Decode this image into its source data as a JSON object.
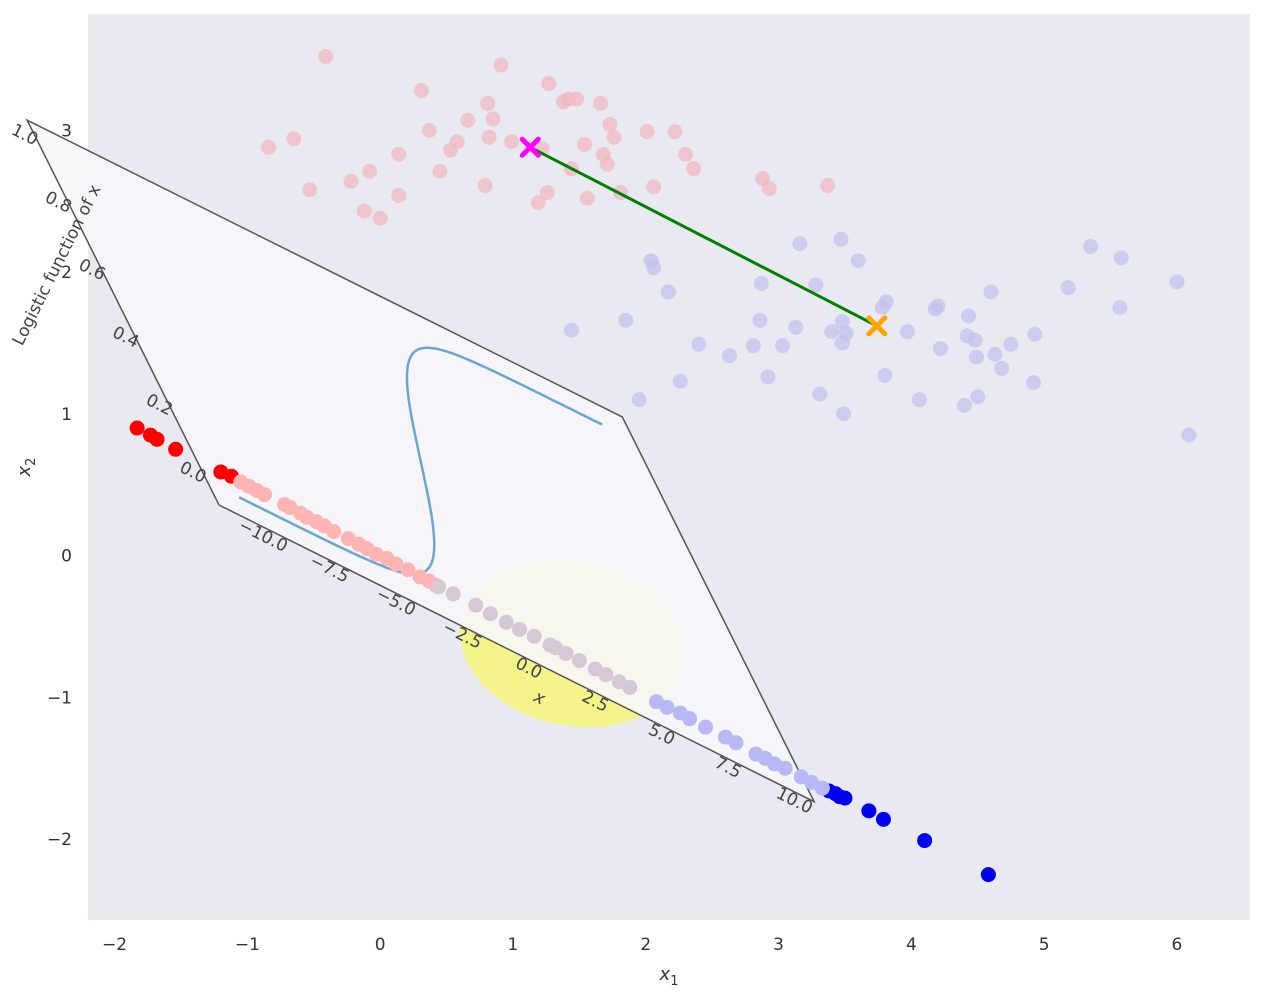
{
  "chart_data": [
    {
      "type": "scatter",
      "title": "",
      "xlabel": "x",
      "xlabel_sub": "1",
      "ylabel": "x",
      "ylabel_sub": "2",
      "xlim": [
        -2.2,
        6.55
      ],
      "ylim": [
        -2.57,
        3.82
      ],
      "xticks": [
        -2,
        -1,
        0,
        1,
        2,
        3,
        4,
        5,
        6
      ],
      "xtick_labels": [
        "−2",
        "−1",
        "0",
        "1",
        "2",
        "3",
        "4",
        "5",
        "6"
      ],
      "yticks": [
        -2,
        -1,
        0,
        1,
        2,
        3
      ],
      "ytick_labels": [
        "−2",
        "−1",
        "0",
        "1",
        "2",
        "3"
      ],
      "grid": false,
      "background": "#e9e9f1",
      "colors": {
        "class_a": "#ff0000",
        "class_b": "#0000ee",
        "class_a_faded": "#f0b8c0",
        "class_b_faded": "#c2c2ee",
        "line": "#008000",
        "start_marker": "#ff00ff",
        "end_marker": "#ffa500",
        "highlight": "#f5f580"
      },
      "series": [
        {
          "role": "class_a_cloud",
          "points": [
            [
              -0.41,
              3.52
            ],
            [
              0.31,
              3.28
            ],
            [
              0.91,
              3.46
            ],
            [
              1.27,
              3.33
            ],
            [
              0.66,
              3.07
            ],
            [
              0.81,
              3.19
            ],
            [
              0.85,
              3.08
            ],
            [
              1.38,
              3.2
            ],
            [
              1.42,
              3.22
            ],
            [
              1.48,
              3.22
            ],
            [
              1.66,
              3.19
            ],
            [
              1.73,
              3.04
            ],
            [
              1.76,
              2.95
            ],
            [
              1.54,
              2.9
            ],
            [
              1.68,
              2.83
            ],
            [
              2.01,
              2.99
            ],
            [
              2.22,
              2.99
            ],
            [
              2.3,
              2.83
            ],
            [
              2.36,
              2.73
            ],
            [
              1.71,
              2.76
            ],
            [
              1.22,
              2.87
            ],
            [
              0.99,
              2.92
            ],
            [
              0.82,
              2.95
            ],
            [
              0.58,
              2.92
            ],
            [
              0.53,
              2.86
            ],
            [
              0.37,
              3.0
            ],
            [
              0.14,
              2.83
            ],
            [
              -0.65,
              2.94
            ],
            [
              -0.84,
              2.88
            ],
            [
              -0.22,
              2.64
            ],
            [
              -0.08,
              2.71
            ],
            [
              0.14,
              2.54
            ],
            [
              0.0,
              2.38
            ],
            [
              -0.12,
              2.43
            ],
            [
              0.79,
              2.61
            ],
            [
              1.19,
              2.49
            ],
            [
              1.26,
              2.56
            ],
            [
              1.56,
              2.52
            ],
            [
              1.81,
              2.56
            ],
            [
              2.06,
              2.6
            ],
            [
              2.88,
              2.66
            ],
            [
              2.93,
              2.59
            ],
            [
              3.37,
              2.61
            ],
            [
              0.45,
              2.71
            ],
            [
              -0.53,
              2.58
            ],
            [
              1.44,
              2.73
            ]
          ]
        },
        {
          "role": "class_b_cloud",
          "points": [
            [
              3.16,
              2.2
            ],
            [
              3.47,
              2.23
            ],
            [
              3.6,
              2.08
            ],
            [
              5.35,
              2.18
            ],
            [
              5.58,
              2.1
            ],
            [
              2.87,
              1.92
            ],
            [
              3.28,
              1.91
            ],
            [
              4.6,
              1.86
            ],
            [
              5.18,
              1.89
            ],
            [
              6.0,
              1.93
            ],
            [
              5.57,
              1.75
            ],
            [
              3.78,
              1.75
            ],
            [
              3.81,
              1.79
            ],
            [
              4.2,
              1.76
            ],
            [
              4.18,
              1.74
            ],
            [
              4.43,
              1.69
            ],
            [
              3.48,
              1.65
            ],
            [
              3.51,
              1.57
            ],
            [
              3.97,
              1.58
            ],
            [
              4.42,
              1.55
            ],
            [
              4.48,
              1.52
            ],
            [
              4.75,
              1.49
            ],
            [
              4.93,
              1.56
            ],
            [
              4.22,
              1.46
            ],
            [
              4.63,
              1.42
            ],
            [
              4.49,
              1.4
            ],
            [
              4.68,
              1.32
            ],
            [
              4.92,
              1.22
            ],
            [
              6.09,
              0.85
            ],
            [
              2.04,
              2.08
            ],
            [
              2.06,
              2.03
            ],
            [
              2.17,
              1.86
            ],
            [
              1.85,
              1.66
            ],
            [
              2.63,
              1.41
            ],
            [
              2.81,
              1.48
            ],
            [
              2.92,
              1.26
            ],
            [
              3.03,
              1.48
            ],
            [
              3.13,
              1.61
            ],
            [
              3.4,
              1.58
            ],
            [
              3.48,
              1.5
            ],
            [
              2.26,
              1.23
            ],
            [
              1.95,
              1.1
            ],
            [
              3.31,
              1.14
            ],
            [
              3.49,
              1.0
            ],
            [
              1.44,
              1.59
            ],
            [
              2.4,
              1.49
            ],
            [
              2.86,
              1.66
            ],
            [
              3.8,
              1.27
            ],
            [
              4.06,
              1.1
            ],
            [
              4.4,
              1.06
            ],
            [
              4.5,
              1.12
            ]
          ]
        },
        {
          "role": "class_a_projected_outside",
          "points": [
            [
              -1.83,
              0.9
            ],
            [
              -1.73,
              0.85
            ],
            [
              -1.68,
              0.82
            ],
            [
              -1.54,
              0.75
            ],
            [
              -1.2,
              0.59
            ],
            [
              -1.12,
              0.56
            ]
          ]
        },
        {
          "role": "class_b_projected_outside",
          "points": [
            [
              3.38,
              -1.66
            ],
            [
              3.43,
              -1.68
            ],
            [
              3.46,
              -1.7
            ],
            [
              3.5,
              -1.71
            ],
            [
              3.68,
              -1.8
            ],
            [
              3.79,
              -1.86
            ],
            [
              4.1,
              -2.01
            ],
            [
              4.58,
              -2.25
            ]
          ]
        },
        {
          "role": "class_a_projected_inside",
          "points": [
            [
              -1.05,
              0.52
            ],
            [
              -0.99,
              0.49
            ],
            [
              -0.93,
              0.46
            ],
            [
              -0.87,
              0.43
            ],
            [
              -0.72,
              0.36
            ],
            [
              -0.68,
              0.34
            ],
            [
              -0.6,
              0.3
            ],
            [
              -0.55,
              0.27
            ],
            [
              -0.48,
              0.24
            ],
            [
              -0.42,
              0.21
            ],
            [
              -0.35,
              0.17
            ],
            [
              -0.24,
              0.12
            ],
            [
              -0.16,
              0.08
            ],
            [
              -0.1,
              0.05
            ],
            [
              -0.03,
              0.01
            ],
            [
              0.05,
              -0.02
            ],
            [
              0.12,
              -0.06
            ],
            [
              0.21,
              -0.1
            ],
            [
              0.3,
              -0.15
            ],
            [
              0.37,
              -0.18
            ],
            [
              0.42,
              -0.21
            ]
          ]
        },
        {
          "role": "overlap_region",
          "points": [
            [
              0.44,
              -0.22
            ],
            [
              0.55,
              -0.27
            ],
            [
              0.72,
              -0.35
            ],
            [
              0.83,
              -0.41
            ],
            [
              0.95,
              -0.47
            ],
            [
              1.05,
              -0.52
            ],
            [
              1.16,
              -0.57
            ],
            [
              1.28,
              -0.63
            ],
            [
              1.32,
              -0.65
            ],
            [
              1.4,
              -0.69
            ],
            [
              1.5,
              -0.74
            ],
            [
              1.62,
              -0.8
            ],
            [
              1.7,
              -0.84
            ],
            [
              1.8,
              -0.89
            ],
            [
              1.88,
              -0.93
            ]
          ]
        },
        {
          "role": "class_b_projected_inside",
          "points": [
            [
              2.08,
              -1.03
            ],
            [
              2.16,
              -1.07
            ],
            [
              2.26,
              -1.11
            ],
            [
              2.33,
              -1.15
            ],
            [
              2.45,
              -1.21
            ],
            [
              2.6,
              -1.28
            ],
            [
              2.68,
              -1.32
            ],
            [
              2.83,
              -1.4
            ],
            [
              2.9,
              -1.43
            ],
            [
              2.97,
              -1.47
            ],
            [
              3.05,
              -1.5
            ],
            [
              3.17,
              -1.56
            ],
            [
              3.25,
              -1.6
            ],
            [
              3.33,
              -1.64
            ]
          ]
        }
      ],
      "annotations": {
        "segment_start": [
          1.13,
          2.88
        ],
        "segment_end": [
          3.74,
          1.62
        ],
        "start_marker": "x-marker",
        "end_marker": "x-marker",
        "highlight_ellipse_center": [
          1.45,
          -0.62
        ]
      }
    },
    {
      "type": "line",
      "title": "",
      "xlabel": "x",
      "ylabel": "Logistic function of x",
      "xlim": [
        -11.2,
        11.2
      ],
      "ylim": [
        -0.07,
        1.07
      ],
      "xticks": [
        -10.0,
        -7.5,
        -5.0,
        -2.5,
        0.0,
        2.5,
        5.0,
        7.5,
        10.0
      ],
      "xtick_labels": [
        "−10.0",
        "−7.5",
        "−5.0",
        "−2.5",
        "0.0",
        "2.5",
        "5.0",
        "7.5",
        "10.0"
      ],
      "yticks": [
        0.0,
        0.2,
        0.4,
        0.6,
        0.8,
        1.0
      ],
      "ytick_labels": [
        "0.0",
        "0.2",
        "0.4",
        "0.6",
        "0.8",
        "1.0"
      ],
      "rotation_degrees": -26.5,
      "series": [
        {
          "function": "1/(1+exp(-x))",
          "x_range": [
            -10,
            10
          ],
          "color": "#6aa6d2"
        }
      ],
      "panel_color": "#f7f7fb",
      "frame_color": "#555555"
    }
  ]
}
